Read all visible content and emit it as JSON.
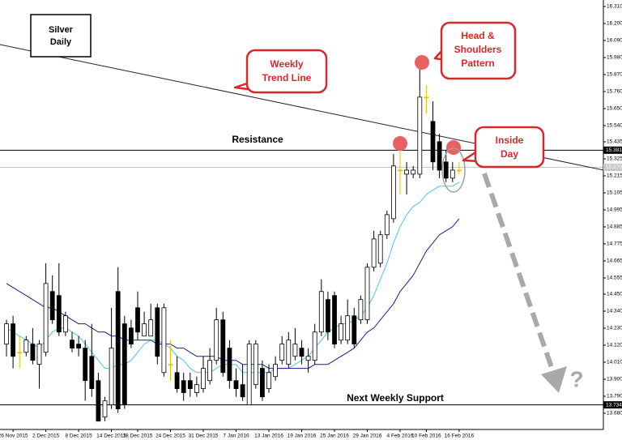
{
  "chart_data": {
    "type": "candlestick",
    "ylim": [
      13.575,
      16.352
    ],
    "yticks": [
      {
        "value": 16.31,
        "label": "16.310"
      },
      {
        "value": 16.2,
        "label": "16.200"
      },
      {
        "value": 16.09,
        "label": "16.090"
      },
      {
        "value": 15.98,
        "label": "15.980"
      },
      {
        "value": 15.87,
        "label": "15.870"
      },
      {
        "value": 15.76,
        "label": "15.760"
      },
      {
        "value": 15.65,
        "label": "15.650"
      },
      {
        "value": 15.54,
        "label": "15.540"
      },
      15.435,
      15.325,
      15.215,
      15.105,
      14.995,
      14.885,
      14.775,
      14.665,
      14.555,
      {
        "value": 14.45,
        "label": "14.450"
      },
      {
        "value": 14.34,
        "label": "14.340"
      },
      {
        "value": 14.23,
        "label": "14.230"
      },
      {
        "value": 14.12,
        "label": "14.120"
      },
      {
        "value": 14.01,
        "label": "14.010"
      },
      {
        "value": 13.9,
        "label": "13.900"
      },
      {
        "value": 13.79,
        "label": "13.790"
      },
      {
        "value": 13.68,
        "label": "13.680"
      }
    ],
    "categories": [
      null,
      "26 Nov 2015",
      null,
      null,
      null,
      null,
      "2 Dec 2015",
      null,
      null,
      null,
      null,
      "8 Dec 2015",
      null,
      null,
      null,
      null,
      "14 Dec 2015",
      null,
      null,
      null,
      "18 Dec 2015",
      null,
      null,
      null,
      null,
      "24 Dec 2015",
      null,
      null,
      null,
      null,
      "31 Dec 2015",
      null,
      null,
      null,
      null,
      "7 Jan 2016",
      null,
      null,
      null,
      null,
      "13 Jan 2016",
      null,
      null,
      null,
      null,
      "19 Jan 2016",
      null,
      null,
      null,
      null,
      "25 Jan 2016",
      null,
      null,
      null,
      null,
      "29 Jan 2016",
      null,
      null,
      null,
      null,
      "4 Feb 2016",
      null,
      null,
      null,
      "10 Feb 2016",
      null,
      null,
      null,
      null,
      "16 Feb 2016"
    ],
    "open": [
      14.127,
      14.258,
      14.074,
      14.074,
      14.127,
      13.996,
      14.074,
      14.467,
      14.441,
      14.205,
      14.153,
      14.127,
      14.101,
      14.048,
      13.891,
      13.655,
      13.734,
      14.467,
      14.258,
      14.231,
      14.362,
      14.179,
      14.179,
      14.362,
      13.943,
      13.996,
      13.943,
      13.891,
      13.891,
      13.813,
      13.839,
      13.891,
      14.022,
      14.284,
      14.101,
      13.891,
      13.865,
      13.734,
      13.865,
      13.97,
      13.839,
      13.917,
      14.022,
      13.996,
      14.048,
      14.101,
      14.022,
      14.022,
      14.205,
      14.415,
      14.441,
      14.153,
      14.153,
      14.31,
      14.284,
      14.284,
      14.624,
      14.65,
      14.834,
      14.938,
      15.252,
      15.226,
      15.226,
      15.226,
      15.724,
      15.567,
      15.436,
      15.305,
      15.2,
      15.252
    ],
    "high": [
      14.284,
      14.31,
      14.179,
      14.179,
      14.231,
      14.153,
      14.65,
      14.572,
      14.65,
      14.336,
      14.205,
      14.179,
      14.153,
      14.258,
      13.943,
      13.786,
      14.362,
      14.624,
      14.31,
      14.284,
      14.467,
      14.336,
      14.388,
      14.388,
      14.388,
      14.153,
      14.048,
      13.943,
      13.943,
      13.917,
      14.048,
      14.101,
      14.362,
      14.336,
      14.153,
      13.97,
      13.996,
      14.153,
      14.153,
      14.022,
      13.996,
      14.048,
      14.179,
      14.205,
      14.231,
      14.153,
      14.101,
      14.258,
      14.546,
      14.467,
      14.467,
      14.31,
      14.415,
      14.362,
      14.441,
      14.65,
      14.86,
      14.86,
      14.991,
      15.357,
      15.383,
      15.305,
      15.279,
      15.933,
      15.802,
      15.697,
      15.488,
      15.383,
      15.305,
      15.305
    ],
    "low": [
      14.048,
      13.97,
      13.97,
      14.048,
      13.996,
      13.839,
      14.048,
      14.258,
      14.179,
      14.179,
      14.074,
      14.048,
      13.76,
      13.786,
      13.629,
      13.629,
      13.708,
      13.682,
      13.708,
      14.101,
      14.153,
      14.179,
      14.179,
      13.996,
      13.917,
      13.891,
      13.813,
      13.76,
      13.786,
      13.786,
      13.813,
      13.865,
      13.996,
      13.917,
      13.839,
      13.786,
      13.76,
      13.734,
      13.839,
      13.76,
      13.813,
      13.891,
      13.996,
      13.97,
      14.022,
      13.996,
      13.943,
      13.996,
      14.179,
      14.153,
      14.101,
      14.127,
      14.127,
      14.101,
      14.258,
      14.258,
      14.598,
      14.624,
      14.807,
      14.912,
      15.095,
      15.095,
      15.2,
      15.2,
      15.619,
      15.252,
      15.2,
      15.174,
      15.174,
      15.226
    ],
    "close": [
      14.258,
      14.048,
      14.074,
      14.153,
      14.022,
      14.127,
      14.519,
      14.284,
      14.205,
      14.31,
      14.101,
      14.101,
      13.891,
      13.839,
      13.629,
      13.76,
      14.101,
      13.708,
      13.734,
      14.127,
      14.205,
      14.258,
      14.284,
      14.048,
      14.362,
      13.996,
      13.839,
      13.813,
      13.839,
      13.865,
      13.97,
      14.022,
      14.284,
      13.943,
      13.891,
      13.839,
      13.786,
      14.127,
      14.127,
      13.786,
      13.943,
      13.996,
      14.127,
      14.153,
      14.127,
      14.048,
      14.048,
      14.205,
      14.467,
      14.205,
      14.127,
      14.258,
      14.31,
      14.127,
      14.415,
      14.624,
      14.807,
      14.834,
      14.964,
      15.279,
      15.252,
      15.252,
      15.252,
      15.724,
      15.724,
      15.305,
      15.252,
      15.2,
      15.252,
      15.252
    ],
    "up_color": "#ffffff",
    "down_color": "#000000",
    "doji_color": "#e8c200",
    "wick_color": "#000000",
    "moving_averages": [
      {
        "color": "#4ec3e6",
        "values": [
          14.231,
          14.205,
          14.179,
          14.153,
          14.127,
          14.101,
          14.153,
          14.205,
          14.231,
          14.231,
          14.205,
          14.179,
          14.127,
          14.074,
          14.022,
          13.97,
          13.97,
          13.996,
          13.996,
          14.022,
          14.074,
          14.127,
          14.153,
          14.153,
          14.127,
          14.101,
          14.048,
          14.022,
          13.97,
          13.943,
          13.943,
          13.943,
          13.97,
          13.996,
          13.996,
          13.996,
          13.943,
          13.943,
          13.943,
          13.943,
          13.943,
          13.97,
          13.97,
          13.97,
          13.996,
          14.022,
          14.048,
          14.101,
          14.153,
          14.205,
          14.231,
          14.258,
          14.258,
          14.284,
          14.31,
          14.362,
          14.441,
          14.546,
          14.65,
          14.781,
          14.886,
          14.964,
          15.017,
          15.043,
          15.095,
          15.122,
          15.148,
          15.148,
          15.148,
          15.174
        ]
      },
      {
        "color": "#1c1c8c",
        "values": [
          14.519,
          14.493,
          14.467,
          14.441,
          14.415,
          14.388,
          14.362,
          14.362,
          14.336,
          14.31,
          14.284,
          14.258,
          14.258,
          14.231,
          14.205,
          14.205,
          14.179,
          14.179,
          14.153,
          14.153,
          14.153,
          14.153,
          14.153,
          14.127,
          14.127,
          14.127,
          14.101,
          14.101,
          14.074,
          14.048,
          14.048,
          14.048,
          14.048,
          14.022,
          14.022,
          14.022,
          13.996,
          13.996,
          13.996,
          13.996,
          13.97,
          13.97,
          13.97,
          13.97,
          13.97,
          13.97,
          13.97,
          13.996,
          13.996,
          13.996,
          14.022,
          14.048,
          14.074,
          14.101,
          14.153,
          14.205,
          14.231,
          14.284,
          14.336,
          14.388,
          14.467,
          14.519,
          14.572,
          14.65,
          14.729,
          14.781,
          14.834,
          14.86,
          14.886,
          14.938
        ]
      }
    ],
    "trend_line": [
      16.064,
      15.252
    ],
    "levels": [
      15.381,
      {
        "value": 15.27,
        "label": "15.270"
      },
      13.734
    ],
    "level_colors": [
      "#000000",
      "#c8c8c8",
      "#000000"
    ],
    "level_label_fills": [
      "#000000",
      "#c8c8c8",
      "#000000"
    ],
    "label_box": [
      "Silver",
      "Daily"
    ],
    "callouts": [
      [
        "Weekly",
        "Trend Line"
      ],
      [
        "Head &",
        "Shoulders",
        "Pattern"
      ],
      [
        "Inside",
        "Day"
      ]
    ],
    "resistance_label": "Resistance",
    "support_label": "Next Weekly Support",
    "question_mark": "?"
  }
}
